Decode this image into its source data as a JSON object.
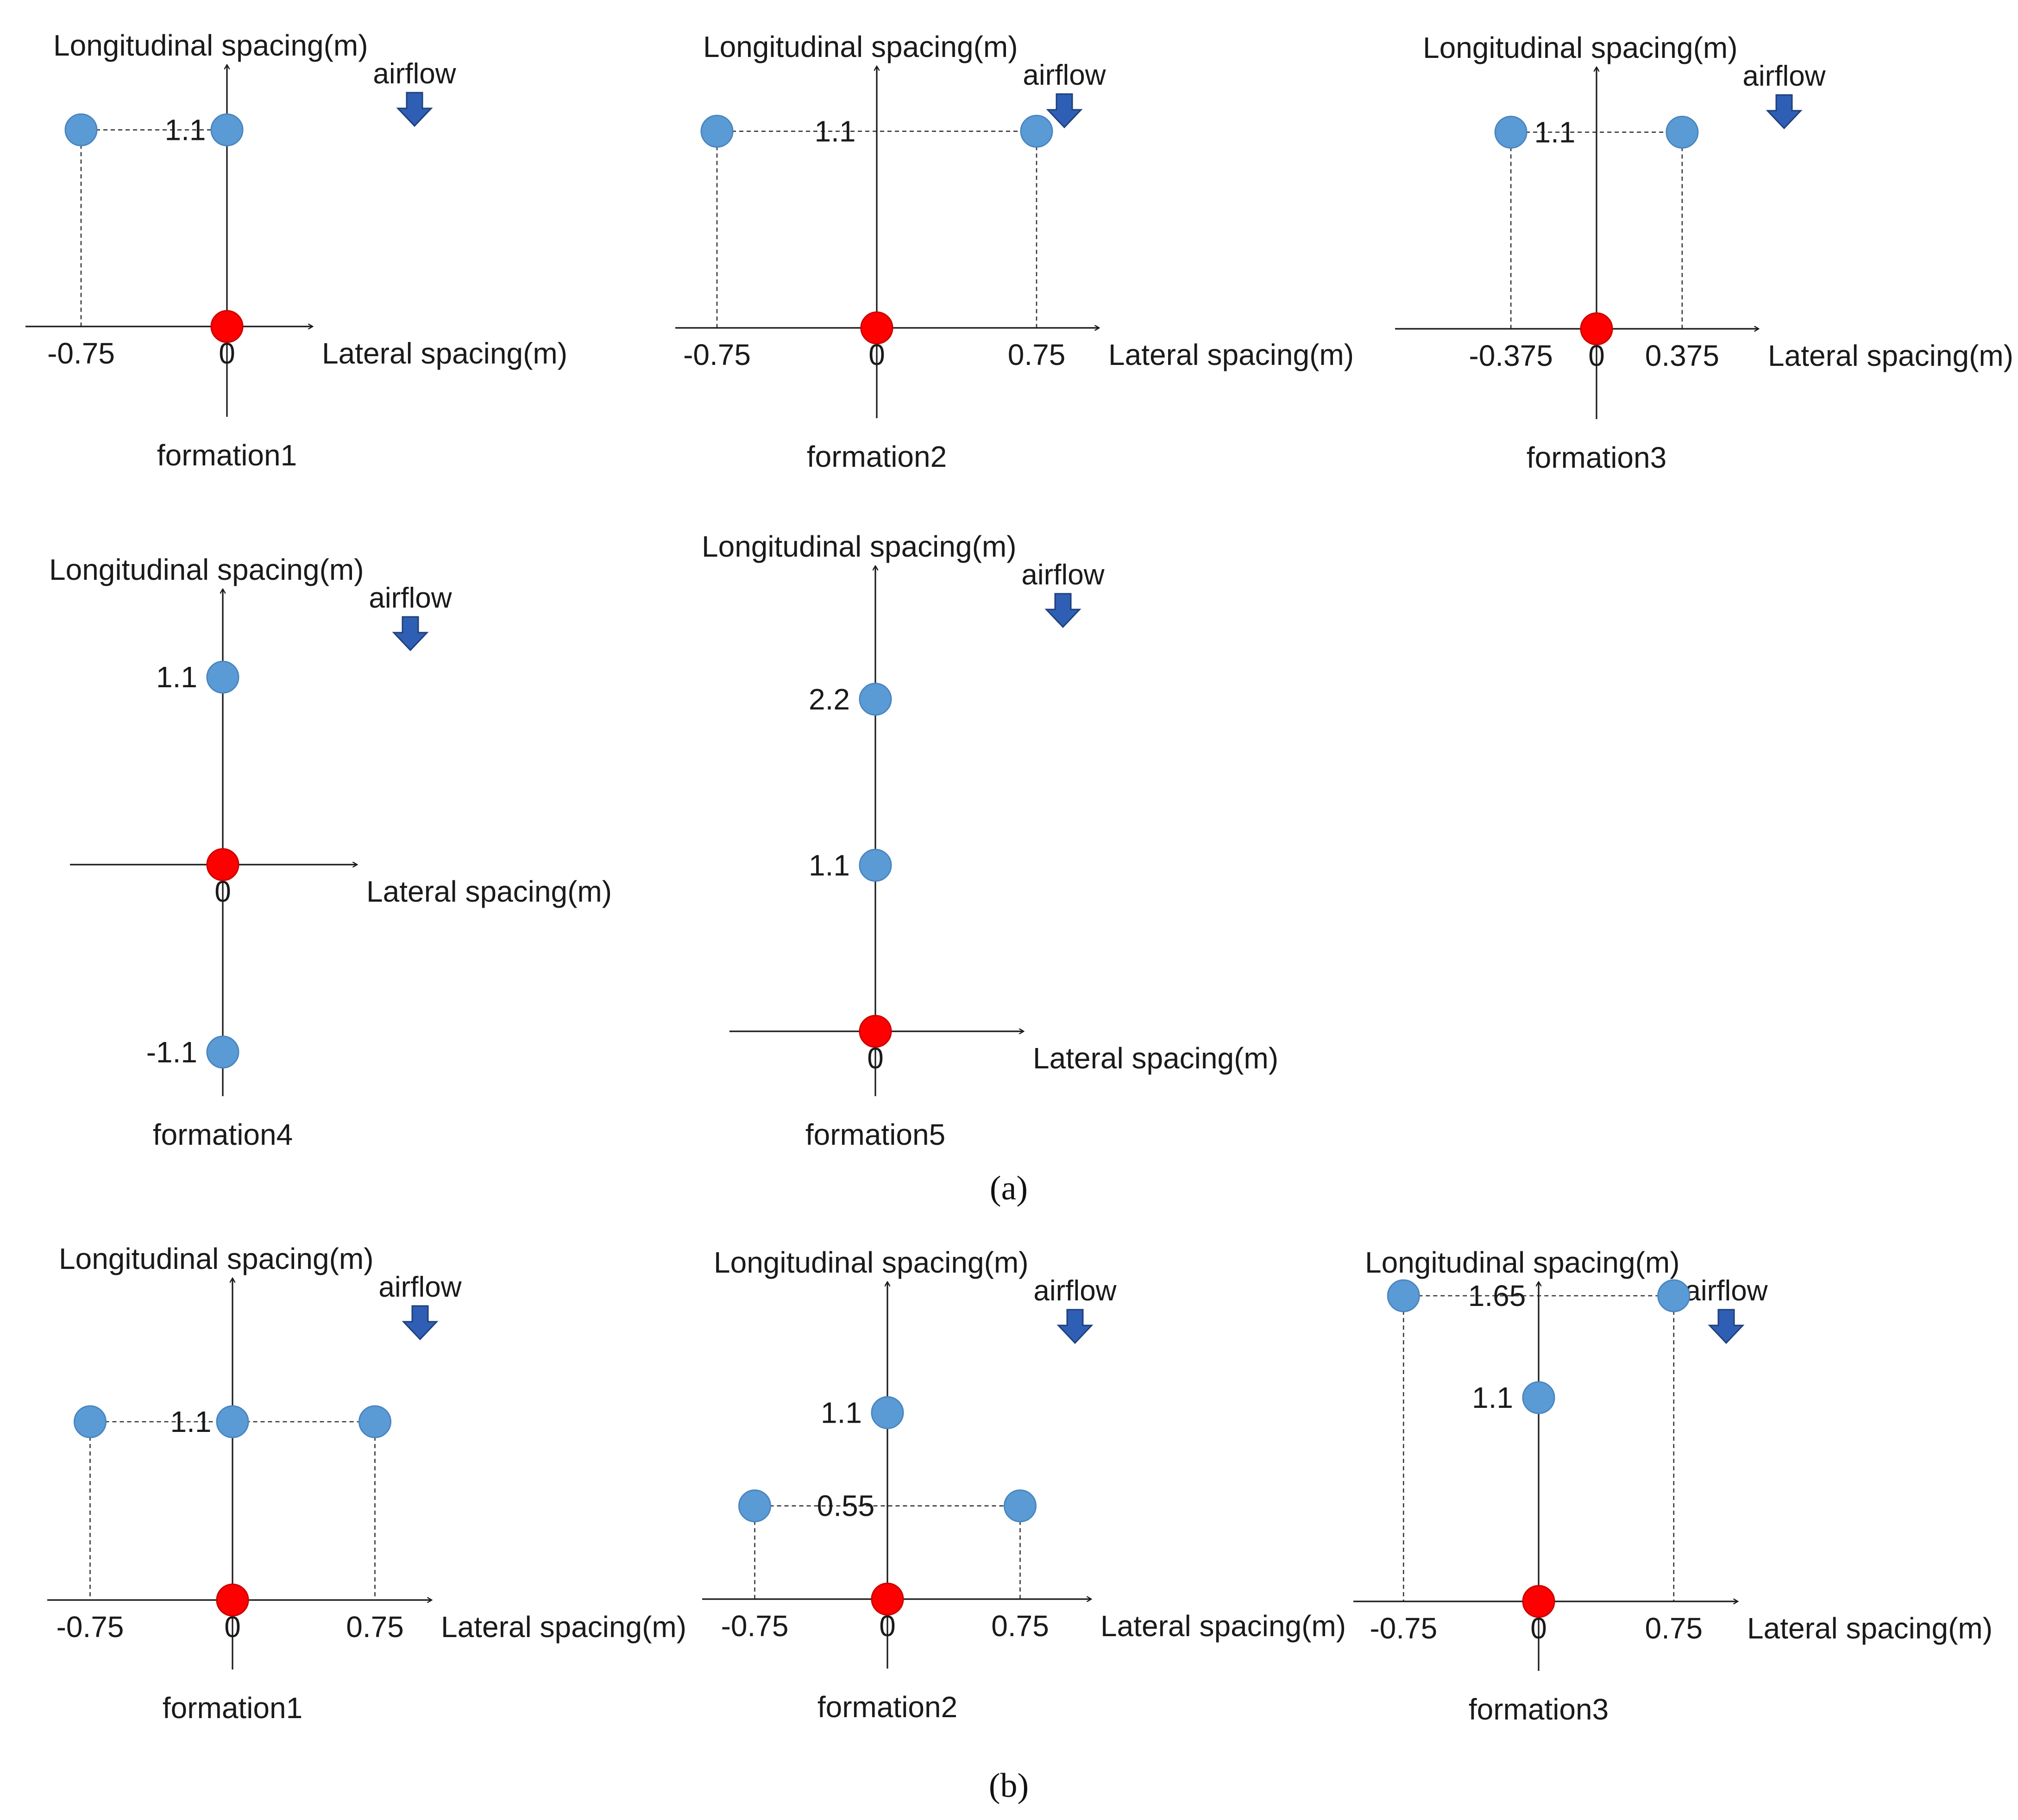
{
  "labels": {
    "x_axis": "Lateral spacing(m)",
    "y_axis": "Longitudinal spacing(m)",
    "airflow": "airflow",
    "origin": "0"
  },
  "colors": {
    "leader": "#ff0000",
    "follower": "#5b9bd5",
    "follower_stroke": "#4a86c0",
    "arrow_fill": "#2e5fb4",
    "arrow_stroke": "#1f3f7a",
    "axis": "#1a1a1a"
  },
  "panels": {
    "a": {
      "open": "(",
      "letter": "a",
      "close": ")"
    },
    "b": {
      "open": "(",
      "letter": "b",
      "close": ")"
    }
  },
  "formations": [
    {
      "panel": "a",
      "caption": "formation1",
      "x_ticks": [
        "-0.75"
      ],
      "y_ticks": [],
      "leader": [
        0,
        0
      ],
      "drones": [
        [
          -0.75,
          1.1
        ],
        [
          0,
          1.1
        ]
      ],
      "guides": [
        {
          "label": "1.1",
          "y": 1.1
        }
      ]
    },
    {
      "panel": "a",
      "caption": "formation2",
      "x_ticks": [
        "-0.75",
        "0.75"
      ],
      "y_ticks": [],
      "leader": [
        0,
        0
      ],
      "drones": [
        [
          -0.75,
          1.1
        ],
        [
          0.75,
          1.1
        ]
      ],
      "guides": [
        {
          "label": "1.1",
          "y": 1.1
        }
      ]
    },
    {
      "panel": "a",
      "caption": "formation3",
      "x_ticks": [
        "-0.375",
        "0.375"
      ],
      "y_ticks": [],
      "leader": [
        0,
        0
      ],
      "drones": [
        [
          -0.375,
          1.1
        ],
        [
          0.375,
          1.1
        ]
      ],
      "guides": [
        {
          "label": "1.1",
          "y": 1.1
        }
      ]
    },
    {
      "panel": "a",
      "caption": "formation4",
      "x_ticks": [],
      "y_ticks": [
        "1.1",
        "-1.1"
      ],
      "leader": [
        0,
        0
      ],
      "drones": [
        [
          0,
          1.1
        ],
        [
          0,
          -1.1
        ]
      ],
      "guides": []
    },
    {
      "panel": "a",
      "caption": "formation5",
      "x_ticks": [],
      "y_ticks": [
        "2.2",
        "1.1"
      ],
      "leader": [
        0,
        0
      ],
      "drones": [
        [
          0,
          2.2
        ],
        [
          0,
          1.1
        ]
      ],
      "guides": []
    },
    {
      "panel": "b",
      "caption": "formation1",
      "x_ticks": [
        "-0.75",
        "0.75"
      ],
      "y_ticks": [],
      "leader": [
        0,
        0
      ],
      "drones": [
        [
          -0.75,
          1.1
        ],
        [
          0,
          1.1
        ],
        [
          0.75,
          1.1
        ]
      ],
      "guides": [
        {
          "label": "1.1",
          "y": 1.1
        }
      ]
    },
    {
      "panel": "b",
      "caption": "formation2",
      "x_ticks": [
        "-0.75",
        "0.75"
      ],
      "y_ticks": [
        "1.1"
      ],
      "leader": [
        0,
        0
      ],
      "drones": [
        [
          0,
          1.1
        ],
        [
          -0.75,
          0.55
        ],
        [
          0.75,
          0.55
        ]
      ],
      "guides": [
        {
          "label": "0.55",
          "y": 0.55
        }
      ]
    },
    {
      "panel": "b",
      "caption": "formation3",
      "x_ticks": [
        "-0.75",
        "0.75"
      ],
      "y_ticks": [
        "1.1"
      ],
      "leader": [
        0,
        0
      ],
      "drones": [
        [
          -0.75,
          1.65
        ],
        [
          0,
          1.1
        ],
        [
          0.75,
          1.65
        ]
      ],
      "guides": [
        {
          "label": "1.65",
          "y": 1.65
        }
      ]
    }
  ]
}
